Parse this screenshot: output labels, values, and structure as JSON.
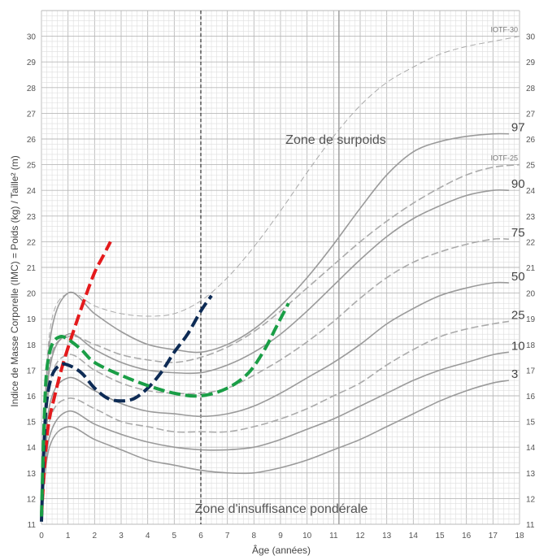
{
  "chart_data": {
    "type": "line",
    "ylabel": "Indice de Masse Corporelle (IMC) = Poids (kg) / Taille² (m)",
    "xlabel": "Âge (années)",
    "xlim": [
      0,
      18
    ],
    "ylim": [
      11,
      31
    ],
    "x_ticks": [
      "0",
      "1",
      "2",
      "3",
      "4",
      "5",
      "6",
      "7",
      "8",
      "9",
      "10",
      "11",
      "12",
      "13",
      "14",
      "15",
      "16",
      "17",
      "18"
    ],
    "y_ticks": [
      "11",
      "12",
      "13",
      "14",
      "15",
      "16",
      "17",
      "18",
      "19",
      "20",
      "21",
      "22",
      "23",
      "24",
      "25",
      "26",
      "27",
      "28",
      "29",
      "30"
    ],
    "grid": true,
    "zones": {
      "upper": "Zone de surpoids",
      "lower": "Zone d'insuffisance pondérale"
    },
    "reference_lines": [
      {
        "x": 6,
        "style": "dashed",
        "color": "#000000"
      },
      {
        "x": 11.2,
        "style": "solid",
        "color": "#9a9a9a"
      }
    ],
    "reference_curves": [
      {
        "name": "IOTF-30",
        "style": "dashed-thin",
        "x": [
          0,
          0.3,
          1,
          2,
          3,
          4,
          5,
          6,
          7,
          8,
          9,
          10,
          11,
          12,
          13,
          14,
          15,
          16,
          17,
          18
        ],
        "y": [
          12.0,
          18.4,
          20.0,
          19.5,
          19.2,
          19.1,
          19.2,
          19.7,
          20.6,
          21.8,
          23.2,
          24.7,
          26.1,
          27.3,
          28.2,
          28.8,
          29.3,
          29.6,
          29.8,
          30.0
        ]
      },
      {
        "name": "97",
        "style": "solid",
        "x": [
          0,
          0.3,
          1,
          2,
          3,
          4,
          5,
          6,
          7,
          8,
          9,
          10,
          11,
          12,
          13,
          14,
          15,
          16,
          17,
          17.6
        ],
        "y": [
          12.0,
          18.0,
          20.0,
          19.2,
          18.5,
          18.0,
          17.8,
          17.7,
          18.0,
          18.6,
          19.5,
          20.6,
          21.9,
          23.3,
          24.6,
          25.5,
          25.9,
          26.1,
          26.2,
          26.2
        ]
      },
      {
        "name": "IOTF-25",
        "style": "dashed",
        "x": [
          0,
          0.3,
          1,
          2,
          3,
          4,
          5,
          6,
          7,
          8,
          9,
          10,
          11,
          12,
          13,
          14,
          15,
          16,
          17,
          18
        ],
        "y": [
          11.9,
          17.2,
          18.3,
          18.0,
          17.6,
          17.4,
          17.3,
          17.5,
          17.9,
          18.5,
          19.3,
          20.2,
          21.1,
          22.0,
          22.8,
          23.5,
          24.1,
          24.6,
          24.9,
          25.0
        ]
      },
      {
        "name": "90",
        "style": "solid",
        "x": [
          0,
          0.3,
          1,
          2,
          3,
          4,
          5,
          6,
          7,
          8,
          9,
          10,
          11,
          12,
          13,
          14,
          15,
          16,
          17,
          17.6
        ],
        "y": [
          11.9,
          17.0,
          18.4,
          17.8,
          17.3,
          17.0,
          16.9,
          16.9,
          17.2,
          17.7,
          18.4,
          19.3,
          20.3,
          21.3,
          22.2,
          22.9,
          23.4,
          23.8,
          24.0,
          24.0
        ]
      },
      {
        "name": "75",
        "style": "dashed",
        "x": [
          0,
          0.3,
          1,
          2,
          3,
          4,
          5,
          6,
          7,
          8,
          9,
          10,
          11,
          12,
          13,
          14,
          15,
          16,
          17,
          17.6
        ],
        "y": [
          11.8,
          16.4,
          17.6,
          17.0,
          16.5,
          16.2,
          16.1,
          16.1,
          16.3,
          16.8,
          17.4,
          18.1,
          18.9,
          19.8,
          20.6,
          21.2,
          21.6,
          21.9,
          22.1,
          22.1
        ]
      },
      {
        "name": "50",
        "style": "solid",
        "x": [
          0,
          0.3,
          1,
          2,
          3,
          4,
          5,
          6,
          7,
          8,
          9,
          10,
          11,
          12,
          13,
          14,
          15,
          16,
          17,
          17.6
        ],
        "y": [
          11.8,
          15.6,
          16.7,
          16.2,
          15.7,
          15.4,
          15.3,
          15.2,
          15.3,
          15.6,
          16.1,
          16.7,
          17.3,
          18.0,
          18.8,
          19.4,
          19.9,
          20.2,
          20.4,
          20.4
        ]
      },
      {
        "name": "25",
        "style": "dashed",
        "x": [
          0,
          0.3,
          1,
          2,
          3,
          4,
          5,
          6,
          7,
          8,
          9,
          10,
          11,
          12,
          13,
          14,
          15,
          16,
          17,
          17.6
        ],
        "y": [
          11.7,
          15.0,
          15.9,
          15.5,
          15.0,
          14.8,
          14.6,
          14.6,
          14.6,
          14.8,
          15.1,
          15.5,
          16.0,
          16.5,
          17.2,
          17.8,
          18.3,
          18.6,
          18.8,
          18.9
        ]
      },
      {
        "name": "10",
        "style": "solid",
        "x": [
          0,
          0.3,
          1,
          2,
          3,
          4,
          5,
          6,
          7,
          8,
          9,
          10,
          11,
          12,
          13,
          14,
          15,
          16,
          17,
          17.6
        ],
        "y": [
          11.6,
          14.4,
          15.4,
          14.9,
          14.5,
          14.2,
          14.0,
          13.9,
          13.9,
          14.0,
          14.3,
          14.7,
          15.1,
          15.6,
          16.1,
          16.6,
          17.0,
          17.3,
          17.6,
          17.7
        ]
      },
      {
        "name": "3",
        "style": "solid",
        "x": [
          0,
          0.3,
          1,
          2,
          3,
          4,
          5,
          6,
          7,
          8,
          9,
          10,
          11,
          12,
          13,
          14,
          15,
          16,
          17,
          17.6
        ],
        "y": [
          11.5,
          14.0,
          14.8,
          14.3,
          13.9,
          13.5,
          13.3,
          13.1,
          13.0,
          13.0,
          13.2,
          13.5,
          13.9,
          14.3,
          14.8,
          15.3,
          15.8,
          16.2,
          16.5,
          16.6
        ]
      }
    ],
    "highlight_curves": [
      {
        "color": "#e41a1c",
        "x": [
          0,
          0.1,
          0.25,
          0.5,
          0.8,
          1.2,
          1.6,
          2.0,
          2.3,
          2.6
        ],
        "y": [
          11.3,
          13.0,
          14.8,
          16.0,
          17.2,
          18.5,
          19.7,
          20.8,
          21.4,
          22.0
        ]
      },
      {
        "color": "#0d2b55",
        "x": [
          0,
          0.1,
          0.2,
          0.4,
          0.7,
          1.0,
          1.5,
          2.0,
          2.5,
          3.0,
          3.5,
          4.0,
          4.5,
          5.0,
          5.5,
          6.0,
          6.4
        ],
        "y": [
          11.1,
          14.2,
          15.8,
          16.8,
          17.2,
          17.2,
          16.9,
          16.3,
          15.9,
          15.8,
          15.9,
          16.3,
          16.9,
          17.7,
          18.4,
          19.3,
          19.9
        ]
      },
      {
        "color": "#1a9e46",
        "x": [
          0,
          0.1,
          0.2,
          0.4,
          0.7,
          1.0,
          1.5,
          2.0,
          3.0,
          4.0,
          5.0,
          6.0,
          7.0,
          7.8,
          8.4,
          8.8,
          9.1,
          9.3
        ],
        "y": [
          11.3,
          15.0,
          17.0,
          18.0,
          18.3,
          18.2,
          17.8,
          17.3,
          16.8,
          16.4,
          16.1,
          16.0,
          16.3,
          16.9,
          17.8,
          18.6,
          19.2,
          19.6
        ]
      }
    ]
  }
}
